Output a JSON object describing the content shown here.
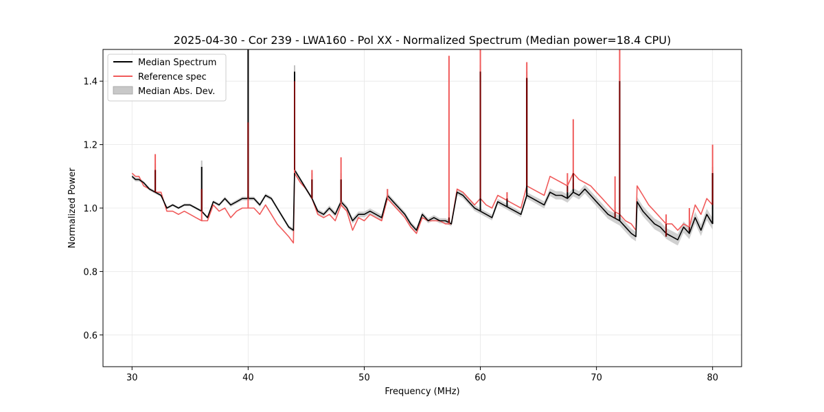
{
  "chart_data": {
    "type": "line",
    "title": "2025-04-30 - Cor 239 - LWA160 - Pol XX - Normalized Spectrum (Median power=18.4 CPU)",
    "xlabel": "Frequency (MHz)",
    "ylabel": "Normalized Power",
    "xlim": [
      27.5,
      82.5
    ],
    "ylim": [
      0.5,
      1.5
    ],
    "x_ticks": [
      30,
      40,
      50,
      60,
      70,
      80
    ],
    "y_ticks": [
      0.6,
      0.8,
      1.0,
      1.2,
      1.4
    ],
    "grid": true,
    "legend_position": "top-left",
    "legend": [
      {
        "label": "Median Spectrum",
        "kind": "line",
        "color": "#000000"
      },
      {
        "label": "Reference spec",
        "kind": "line",
        "color": "#f05a5a"
      },
      {
        "label": "Median Abs. Dev.",
        "kind": "patch",
        "color": "#c8c8c8"
      }
    ],
    "series": [
      {
        "name": "Median Spectrum",
        "color": "#000000",
        "x": [
          30.0,
          30.3,
          30.6,
          31.0,
          31.5,
          32.0,
          32.5,
          33.0,
          33.5,
          34.0,
          34.5,
          35.0,
          35.5,
          36.0,
          36.5,
          37.0,
          37.5,
          38.0,
          38.5,
          39.0,
          39.5,
          40.0,
          40.5,
          41.0,
          41.5,
          42.0,
          42.5,
          43.0,
          43.5,
          43.9,
          44.0,
          44.5,
          45.0,
          45.5,
          46.0,
          46.5,
          47.0,
          47.5,
          48.0,
          48.5,
          49.0,
          49.5,
          50.0,
          50.5,
          51.0,
          51.5,
          52.0,
          52.5,
          53.0,
          53.5,
          54.0,
          54.5,
          55.0,
          55.5,
          56.0,
          56.5,
          57.0,
          57.5,
          58.0,
          58.5,
          59.0,
          59.5,
          60.0,
          60.5,
          61.0,
          61.5,
          62.0,
          62.5,
          63.0,
          63.5,
          64.0,
          64.5,
          65.0,
          65.5,
          66.0,
          66.5,
          67.0,
          67.5,
          68.0,
          68.5,
          69.0,
          69.5,
          70.0,
          70.5,
          71.0,
          71.5,
          72.0,
          72.5,
          73.0,
          73.4,
          73.5,
          74.0,
          74.5,
          75.0,
          75.5,
          76.0,
          76.5,
          77.0,
          77.5,
          78.0,
          78.5,
          79.0,
          79.5,
          80.0
        ],
        "values": [
          1.1,
          1.09,
          1.09,
          1.08,
          1.06,
          1.05,
          1.04,
          1.0,
          1.01,
          1.0,
          1.01,
          1.01,
          1.0,
          0.99,
          0.97,
          1.02,
          1.01,
          1.03,
          1.01,
          1.02,
          1.03,
          1.03,
          1.03,
          1.01,
          1.04,
          1.03,
          1.0,
          0.97,
          0.94,
          0.93,
          1.12,
          1.09,
          1.06,
          1.03,
          0.99,
          0.98,
          1.0,
          0.98,
          1.02,
          1.0,
          0.96,
          0.98,
          0.98,
          0.99,
          0.98,
          0.97,
          1.04,
          1.02,
          1.0,
          0.98,
          0.95,
          0.93,
          0.98,
          0.96,
          0.97,
          0.96,
          0.96,
          0.95,
          1.05,
          1.04,
          1.02,
          1.0,
          0.99,
          0.98,
          0.97,
          1.02,
          1.01,
          1.0,
          0.99,
          0.98,
          1.04,
          1.03,
          1.02,
          1.01,
          1.05,
          1.04,
          1.04,
          1.03,
          1.05,
          1.04,
          1.06,
          1.04,
          1.02,
          1.0,
          0.98,
          0.97,
          0.96,
          0.94,
          0.92,
          0.91,
          1.02,
          0.99,
          0.97,
          0.95,
          0.94,
          0.92,
          0.91,
          0.9,
          0.94,
          0.92,
          0.97,
          0.93,
          0.98,
          0.95
        ]
      },
      {
        "name": "Reference spec",
        "color": "#f05a5a",
        "x": [
          30.0,
          30.3,
          30.6,
          31.0,
          31.5,
          32.0,
          32.5,
          33.0,
          33.5,
          34.0,
          34.5,
          35.0,
          35.5,
          36.0,
          36.5,
          37.0,
          37.5,
          38.0,
          38.5,
          39.0,
          39.5,
          40.0,
          40.5,
          41.0,
          41.5,
          42.0,
          42.5,
          43.0,
          43.5,
          43.9,
          44.0,
          44.5,
          45.0,
          45.5,
          46.0,
          46.5,
          47.0,
          47.5,
          48.0,
          48.5,
          49.0,
          49.5,
          50.0,
          50.5,
          51.0,
          51.5,
          52.0,
          52.5,
          53.0,
          53.5,
          54.0,
          54.5,
          55.0,
          55.5,
          56.0,
          56.5,
          57.0,
          57.5,
          58.0,
          58.5,
          59.0,
          59.5,
          60.0,
          60.5,
          61.0,
          61.5,
          62.0,
          62.5,
          63.0,
          63.5,
          64.0,
          64.5,
          65.0,
          65.5,
          66.0,
          66.5,
          67.0,
          67.5,
          68.0,
          68.5,
          69.0,
          69.5,
          70.0,
          70.5,
          71.0,
          71.5,
          72.0,
          72.5,
          73.0,
          73.4,
          73.5,
          74.0,
          74.5,
          75.0,
          75.5,
          76.0,
          76.5,
          77.0,
          77.5,
          78.0,
          78.5,
          79.0,
          79.5,
          80.0
        ],
        "values": [
          1.11,
          1.1,
          1.1,
          1.07,
          1.06,
          1.05,
          1.05,
          0.99,
          0.99,
          0.98,
          0.99,
          0.98,
          0.97,
          0.96,
          0.96,
          1.01,
          0.99,
          1.0,
          0.97,
          0.99,
          1.0,
          1.0,
          1.0,
          0.98,
          1.01,
          0.98,
          0.95,
          0.93,
          0.91,
          0.89,
          1.11,
          1.08,
          1.06,
          1.03,
          0.98,
          0.97,
          0.98,
          0.96,
          1.01,
          0.99,
          0.93,
          0.97,
          0.96,
          0.98,
          0.97,
          0.96,
          1.03,
          1.01,
          0.99,
          0.97,
          0.94,
          0.92,
          0.97,
          0.96,
          0.96,
          0.96,
          0.95,
          0.95,
          1.06,
          1.05,
          1.03,
          1.01,
          1.03,
          1.01,
          1.0,
          1.04,
          1.03,
          1.02,
          1.01,
          1.0,
          1.07,
          1.06,
          1.05,
          1.04,
          1.1,
          1.09,
          1.08,
          1.07,
          1.11,
          1.09,
          1.08,
          1.07,
          1.05,
          1.03,
          1.01,
          0.99,
          0.98,
          0.96,
          0.95,
          0.93,
          1.07,
          1.04,
          1.01,
          0.99,
          0.97,
          0.95,
          0.95,
          0.93,
          0.95,
          0.94,
          1.01,
          0.98,
          1.03,
          1.01
        ]
      },
      {
        "name": "Median Abs. Dev.",
        "color": "#c8c8c8",
        "mad": [
          0.006,
          0.006,
          0.006,
          0.005,
          0.005,
          0.005,
          0.005,
          0.004,
          0.004,
          0.004,
          0.004,
          0.004,
          0.004,
          0.004,
          0.004,
          0.005,
          0.005,
          0.006,
          0.006,
          0.006,
          0.006,
          0.006,
          0.006,
          0.006,
          0.006,
          0.006,
          0.006,
          0.006,
          0.006,
          0.006,
          0.006,
          0.006,
          0.006,
          0.006,
          0.007,
          0.007,
          0.008,
          0.008,
          0.008,
          0.008,
          0.009,
          0.009,
          0.009,
          0.009,
          0.009,
          0.009,
          0.008,
          0.008,
          0.008,
          0.008,
          0.008,
          0.008,
          0.008,
          0.008,
          0.008,
          0.008,
          0.008,
          0.008,
          0.008,
          0.009,
          0.009,
          0.009,
          0.009,
          0.009,
          0.009,
          0.009,
          0.009,
          0.009,
          0.009,
          0.009,
          0.01,
          0.01,
          0.011,
          0.011,
          0.012,
          0.013,
          0.013,
          0.013,
          0.013,
          0.013,
          0.014,
          0.014,
          0.014,
          0.014,
          0.014,
          0.015,
          0.015,
          0.015,
          0.015,
          0.015,
          0.015,
          0.016,
          0.016,
          0.017,
          0.017,
          0.017,
          0.018,
          0.018,
          0.018,
          0.018,
          0.018,
          0.018,
          0.018,
          0.018
        ]
      }
    ],
    "spikes": [
      {
        "x": 32.0,
        "median": 1.12,
        "reference": 1.17
      },
      {
        "x": 36.0,
        "median": 1.13,
        "reference": 1.06
      },
      {
        "x": 40.0,
        "median": 1.5,
        "reference": 1.27
      },
      {
        "x": 44.0,
        "median": 1.43,
        "reference": 1.4
      },
      {
        "x": 45.5,
        "median": 1.09,
        "reference": 1.12
      },
      {
        "x": 48.0,
        "median": 1.09,
        "reference": 1.16
      },
      {
        "x": 52.0,
        "median": 1.04,
        "reference": 1.06
      },
      {
        "x": 57.3,
        "median": 0.97,
        "reference": 1.48
      },
      {
        "x": 60.0,
        "median": 1.43,
        "reference": 1.5
      },
      {
        "x": 62.3,
        "median": 1.03,
        "reference": 1.05
      },
      {
        "x": 64.0,
        "median": 1.41,
        "reference": 1.46
      },
      {
        "x": 67.5,
        "median": 1.05,
        "reference": 1.11
      },
      {
        "x": 68.0,
        "median": 1.06,
        "reference": 1.28
      },
      {
        "x": 71.6,
        "median": 0.97,
        "reference": 1.1
      },
      {
        "x": 72.0,
        "median": 1.4,
        "reference": 1.5
      },
      {
        "x": 76.0,
        "median": 0.91,
        "reference": 0.98
      },
      {
        "x": 78.0,
        "median": 0.93,
        "reference": 1.0
      },
      {
        "x": 80.0,
        "median": 1.11,
        "reference": 1.2
      }
    ]
  }
}
